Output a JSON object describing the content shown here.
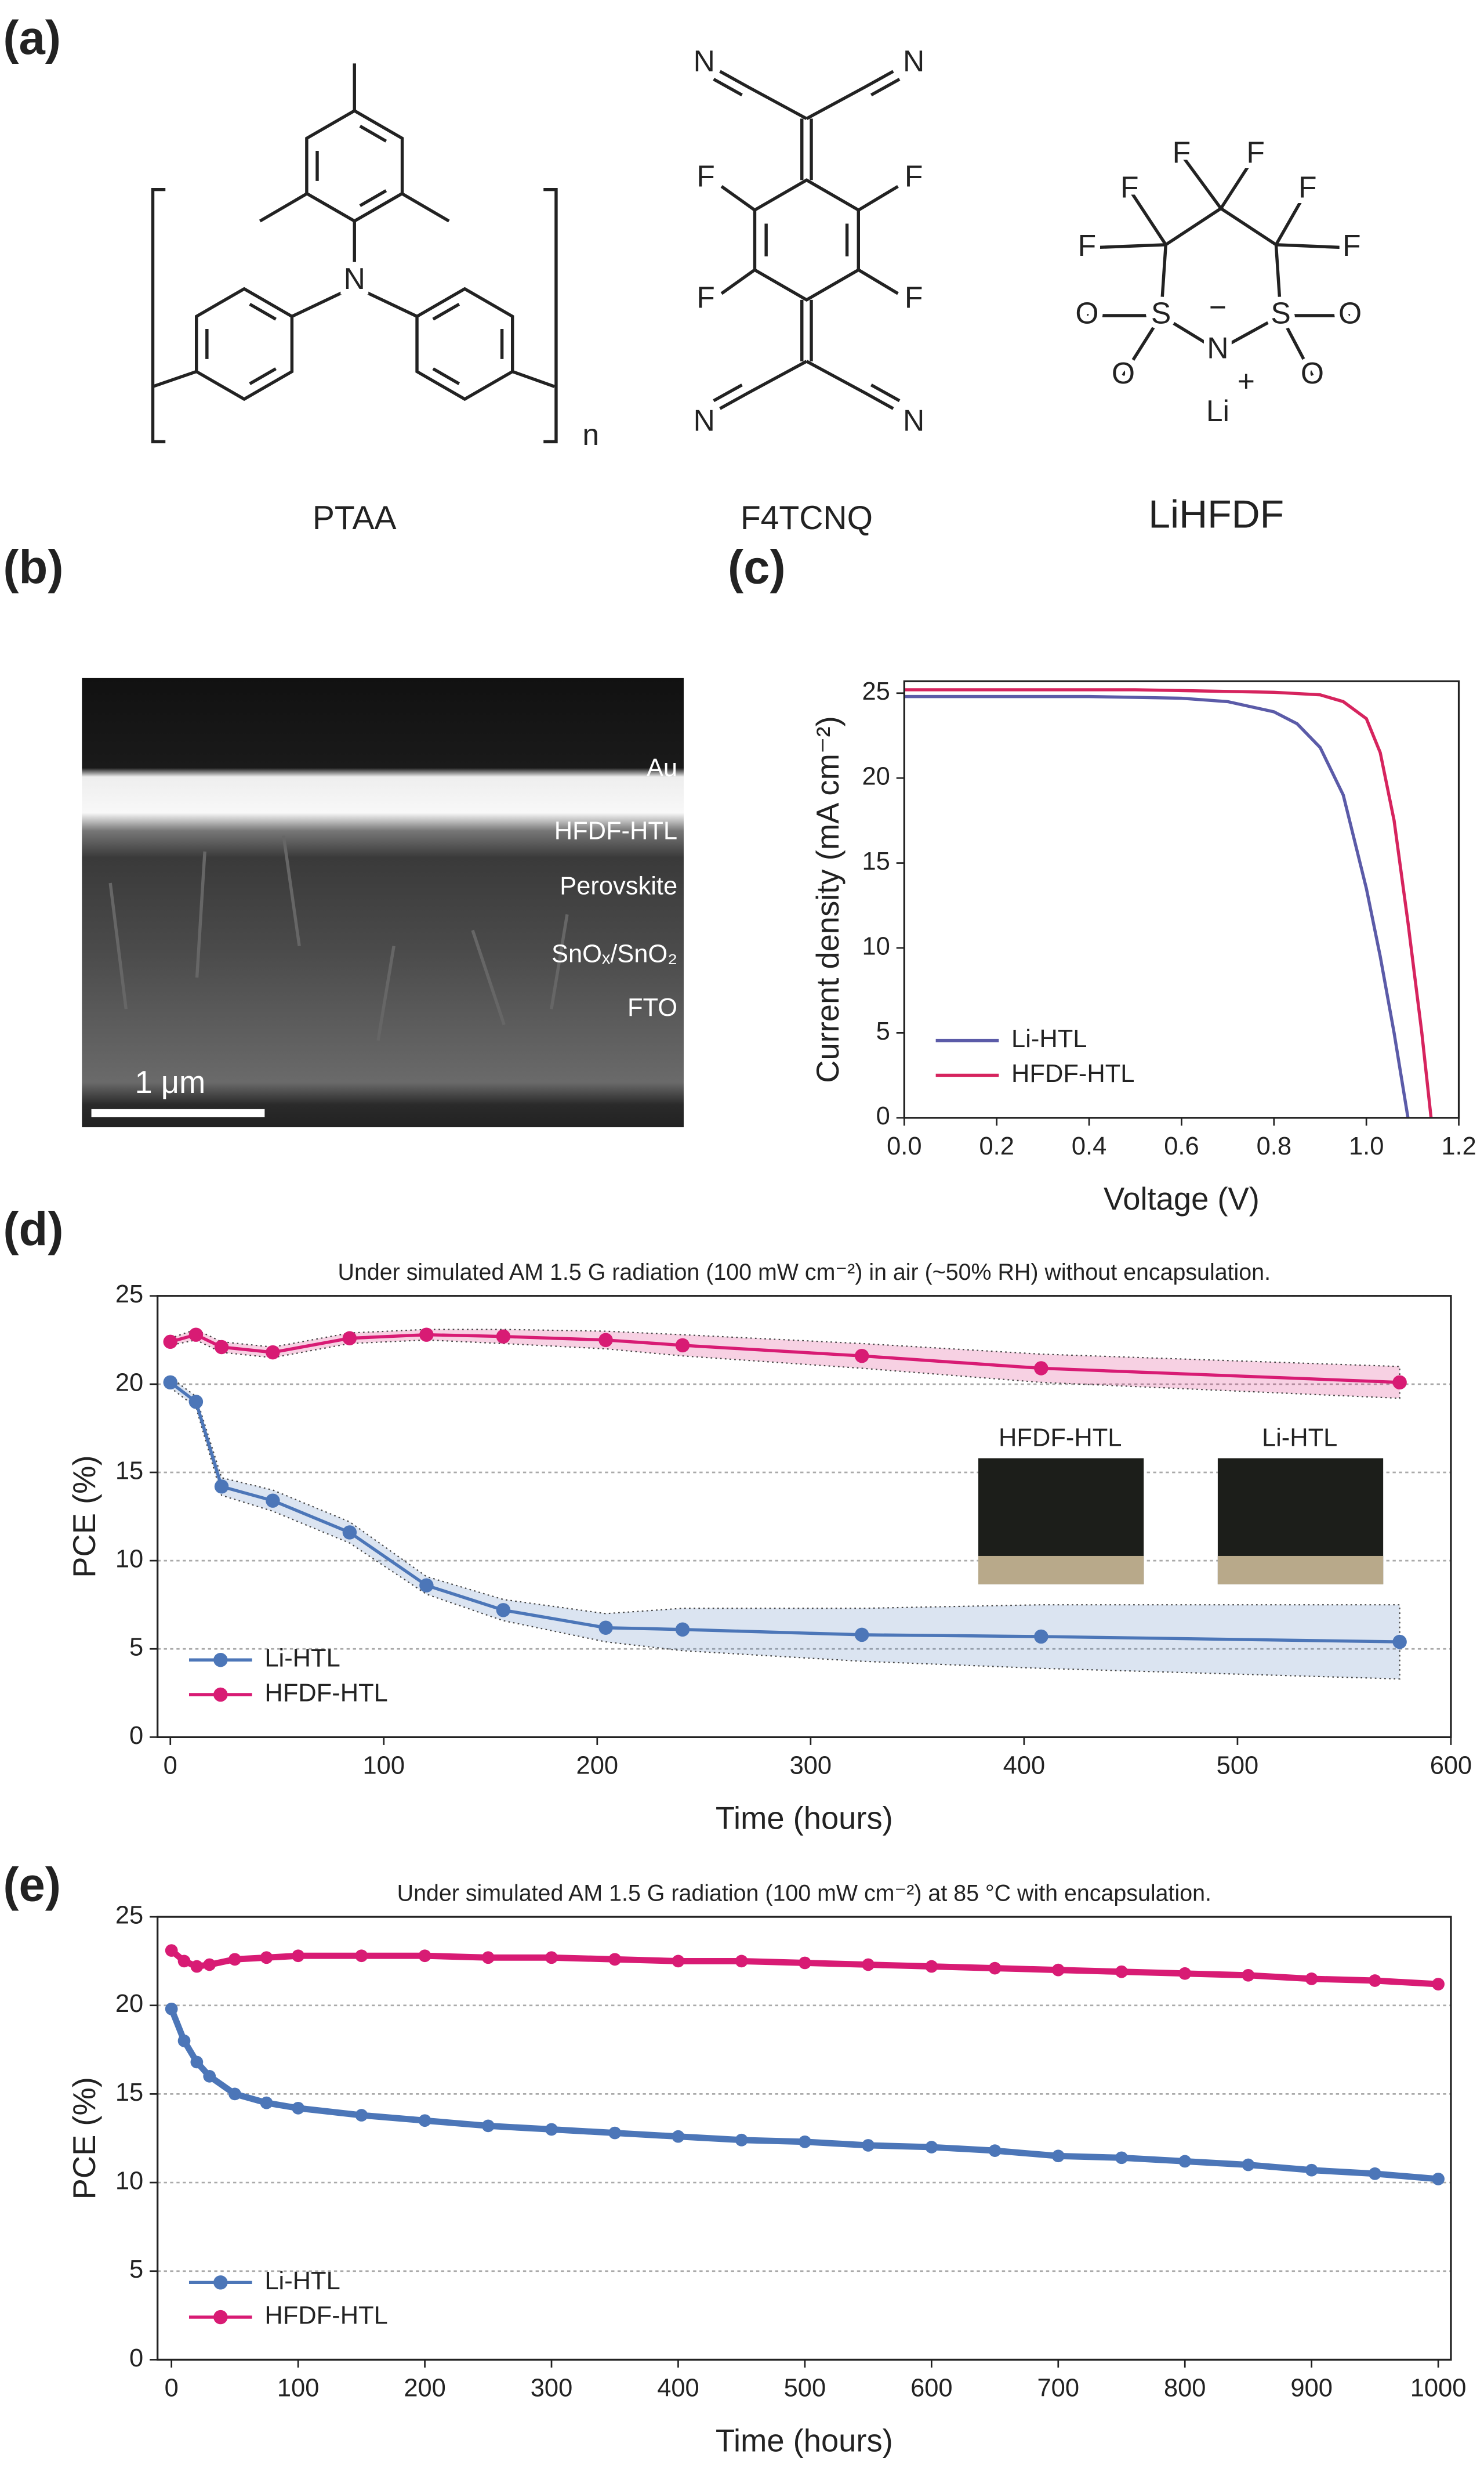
{
  "panel_labels": [
    "(a)",
    "(b)",
    "(c)",
    "(d)",
    "(e)"
  ],
  "structures": [
    {
      "name": "PTAA",
      "atoms": [
        "N",
        "n"
      ]
    },
    {
      "name": "F4TCNQ",
      "atoms": [
        "N",
        "N",
        "F",
        "F",
        "F",
        "F",
        "N",
        "N"
      ]
    },
    {
      "name": "LiHFDF",
      "atoms": [
        "F",
        "F",
        "F",
        "F",
        "F",
        "F",
        "O",
        "S",
        "N",
        "S",
        "O",
        "O",
        "O",
        "−",
        "Li",
        "+"
      ]
    }
  ],
  "micrograph": {
    "layers": [
      "Au",
      "HFDF-HTL",
      "Perovskite",
      "SnOₓ/SnO₂",
      "FTO"
    ],
    "scale_bar": "1 μm"
  },
  "chart_data": [
    {
      "type": "line",
      "xlabel": "Voltage (V)",
      "ylabel": "Current density (mA cm⁻²)",
      "xlim": [
        0,
        1.2
      ],
      "ylim": [
        0,
        25.7
      ],
      "xticks": [
        {
          "value": 0,
          "label": "0.0"
        },
        {
          "value": 0.2,
          "label": "0.2"
        },
        {
          "value": 0.4,
          "label": "0.4"
        },
        {
          "value": 0.6,
          "label": "0.6"
        },
        {
          "value": 0.8,
          "label": "0.8"
        },
        {
          "value": 1,
          "label": "1.0"
        },
        {
          "value": 1.2,
          "label": "1.2"
        }
      ],
      "yticks": [
        0,
        5,
        10,
        15,
        20,
        25
      ],
      "grid": false,
      "markers": false,
      "legend": "lower left",
      "series": [
        {
          "name": "Li-HTL",
          "color": "#5b5ba8",
          "x": [
            0,
            0.1,
            0.2,
            0.3,
            0.4,
            0.5,
            0.6,
            0.7,
            0.8,
            0.85,
            0.9,
            0.95,
            1.0,
            1.03,
            1.06,
            1.09
          ],
          "values": [
            24.8,
            24.8,
            24.8,
            24.8,
            24.8,
            24.75,
            24.7,
            24.5,
            23.9,
            23.2,
            21.8,
            19.0,
            13.5,
            9.5,
            5.0,
            0
          ]
        },
        {
          "name": "HFDF-HTL",
          "color": "#d6245e",
          "x": [
            0,
            0.1,
            0.2,
            0.3,
            0.4,
            0.5,
            0.6,
            0.7,
            0.8,
            0.9,
            0.95,
            1.0,
            1.03,
            1.06,
            1.09,
            1.12,
            1.14
          ],
          "values": [
            25.2,
            25.2,
            25.2,
            25.2,
            25.2,
            25.2,
            25.15,
            25.1,
            25.05,
            24.9,
            24.5,
            23.5,
            21.5,
            17.5,
            11.5,
            5.0,
            0
          ]
        }
      ]
    },
    {
      "type": "line",
      "title": "Under simulated AM 1.5 G radiation  (100 mW cm⁻²) in air (~50% RH) without encapsulation.",
      "xlabel": "Time (hours)",
      "ylabel": "PCE (%)",
      "xlim": [
        -6,
        600
      ],
      "ylim": [
        0,
        25
      ],
      "xticks": [
        0,
        100,
        200,
        300,
        400,
        500,
        600
      ],
      "yticks": [
        0,
        5,
        10,
        15,
        20,
        25
      ],
      "grid": true,
      "markers": true,
      "legend": "lower left",
      "insets": [
        "HFDF-HTL",
        "Li-HTL"
      ],
      "x": [
        0,
        12,
        24,
        48,
        84,
        120,
        156,
        204,
        240,
        324,
        408,
        576
      ],
      "series": [
        {
          "name": "Li-HTL",
          "color": "#4c76b8",
          "values": [
            20.1,
            19.0,
            14.2,
            13.4,
            11.6,
            8.6,
            7.2,
            6.2,
            6.1,
            5.8,
            5.7,
            5.4
          ],
          "errors": [
            0.3,
            0.3,
            0.5,
            0.6,
            0.6,
            0.5,
            0.6,
            0.8,
            1.2,
            1.5,
            1.8,
            2.1
          ]
        },
        {
          "name": "HFDF-HTL",
          "color": "#d81b74",
          "values": [
            22.4,
            22.8,
            22.1,
            21.8,
            22.6,
            22.8,
            22.7,
            22.5,
            22.2,
            21.6,
            20.9,
            20.1
          ],
          "errors": [
            0.2,
            0.3,
            0.3,
            0.3,
            0.3,
            0.3,
            0.4,
            0.5,
            0.6,
            0.7,
            0.8,
            0.9
          ]
        }
      ]
    },
    {
      "type": "line",
      "title": "Under simulated AM 1.5 G radiation  (100 mW cm⁻²) at 85 °C with encapsulation.",
      "xlabel": "Time (hours)",
      "ylabel": "PCE (%)",
      "xlim": [
        -11,
        1010
      ],
      "ylim": [
        0,
        25
      ],
      "xticks": [
        0,
        100,
        200,
        300,
        400,
        500,
        600,
        700,
        800,
        900,
        1000
      ],
      "yticks": [
        0,
        5,
        10,
        15,
        20,
        25
      ],
      "grid": true,
      "markers": true,
      "legend": "lower left",
      "x": [
        0,
        10,
        20,
        30,
        50,
        75,
        100,
        150,
        200,
        250,
        300,
        350,
        400,
        450,
        500,
        550,
        600,
        650,
        700,
        750,
        800,
        850,
        900,
        950,
        1000
      ],
      "series": [
        {
          "name": "Li-HTL",
          "color": "#4c76b8",
          "values": [
            19.8,
            18.0,
            16.8,
            16.0,
            15.0,
            14.5,
            14.2,
            13.8,
            13.5,
            13.2,
            13.0,
            12.8,
            12.6,
            12.4,
            12.3,
            12.1,
            12.0,
            11.8,
            11.5,
            11.4,
            11.2,
            11.0,
            10.7,
            10.5,
            10.2
          ]
        },
        {
          "name": "HFDF-HTL",
          "color": "#d81b74",
          "values": [
            23.1,
            22.5,
            22.2,
            22.3,
            22.6,
            22.7,
            22.8,
            22.8,
            22.8,
            22.7,
            22.7,
            22.6,
            22.5,
            22.5,
            22.4,
            22.3,
            22.2,
            22.1,
            22.0,
            21.9,
            21.8,
            21.7,
            21.5,
            21.4,
            21.2
          ]
        }
      ]
    }
  ]
}
